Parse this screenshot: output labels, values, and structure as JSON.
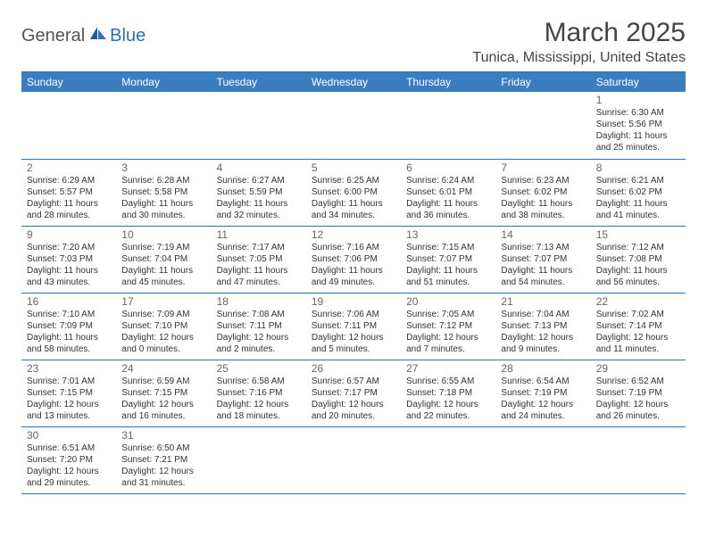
{
  "logo": {
    "text_a": "General",
    "text_b": "Blue",
    "icon_color": "#2f6fb3"
  },
  "title": "March 2025",
  "location": "Tunica, Mississippi, United States",
  "header_bg": "#3a7ec1",
  "border_color": "#2f6fb3",
  "days_of_week": [
    "Sunday",
    "Monday",
    "Tuesday",
    "Wednesday",
    "Thursday",
    "Friday",
    "Saturday"
  ],
  "weeks": [
    [
      null,
      null,
      null,
      null,
      null,
      null,
      {
        "d": "1",
        "sr": "6:30 AM",
        "ss": "5:56 PM",
        "dl": "11 hours and 25 minutes."
      }
    ],
    [
      {
        "d": "2",
        "sr": "6:29 AM",
        "ss": "5:57 PM",
        "dl": "11 hours and 28 minutes."
      },
      {
        "d": "3",
        "sr": "6:28 AM",
        "ss": "5:58 PM",
        "dl": "11 hours and 30 minutes."
      },
      {
        "d": "4",
        "sr": "6:27 AM",
        "ss": "5:59 PM",
        "dl": "11 hours and 32 minutes."
      },
      {
        "d": "5",
        "sr": "6:25 AM",
        "ss": "6:00 PM",
        "dl": "11 hours and 34 minutes."
      },
      {
        "d": "6",
        "sr": "6:24 AM",
        "ss": "6:01 PM",
        "dl": "11 hours and 36 minutes."
      },
      {
        "d": "7",
        "sr": "6:23 AM",
        "ss": "6:02 PM",
        "dl": "11 hours and 38 minutes."
      },
      {
        "d": "8",
        "sr": "6:21 AM",
        "ss": "6:02 PM",
        "dl": "11 hours and 41 minutes."
      }
    ],
    [
      {
        "d": "9",
        "sr": "7:20 AM",
        "ss": "7:03 PM",
        "dl": "11 hours and 43 minutes."
      },
      {
        "d": "10",
        "sr": "7:19 AM",
        "ss": "7:04 PM",
        "dl": "11 hours and 45 minutes."
      },
      {
        "d": "11",
        "sr": "7:17 AM",
        "ss": "7:05 PM",
        "dl": "11 hours and 47 minutes."
      },
      {
        "d": "12",
        "sr": "7:16 AM",
        "ss": "7:06 PM",
        "dl": "11 hours and 49 minutes."
      },
      {
        "d": "13",
        "sr": "7:15 AM",
        "ss": "7:07 PM",
        "dl": "11 hours and 51 minutes."
      },
      {
        "d": "14",
        "sr": "7:13 AM",
        "ss": "7:07 PM",
        "dl": "11 hours and 54 minutes."
      },
      {
        "d": "15",
        "sr": "7:12 AM",
        "ss": "7:08 PM",
        "dl": "11 hours and 56 minutes."
      }
    ],
    [
      {
        "d": "16",
        "sr": "7:10 AM",
        "ss": "7:09 PM",
        "dl": "11 hours and 58 minutes."
      },
      {
        "d": "17",
        "sr": "7:09 AM",
        "ss": "7:10 PM",
        "dl": "12 hours and 0 minutes."
      },
      {
        "d": "18",
        "sr": "7:08 AM",
        "ss": "7:11 PM",
        "dl": "12 hours and 2 minutes."
      },
      {
        "d": "19",
        "sr": "7:06 AM",
        "ss": "7:11 PM",
        "dl": "12 hours and 5 minutes."
      },
      {
        "d": "20",
        "sr": "7:05 AM",
        "ss": "7:12 PM",
        "dl": "12 hours and 7 minutes."
      },
      {
        "d": "21",
        "sr": "7:04 AM",
        "ss": "7:13 PM",
        "dl": "12 hours and 9 minutes."
      },
      {
        "d": "22",
        "sr": "7:02 AM",
        "ss": "7:14 PM",
        "dl": "12 hours and 11 minutes."
      }
    ],
    [
      {
        "d": "23",
        "sr": "7:01 AM",
        "ss": "7:15 PM",
        "dl": "12 hours and 13 minutes."
      },
      {
        "d": "24",
        "sr": "6:59 AM",
        "ss": "7:15 PM",
        "dl": "12 hours and 16 minutes."
      },
      {
        "d": "25",
        "sr": "6:58 AM",
        "ss": "7:16 PM",
        "dl": "12 hours and 18 minutes."
      },
      {
        "d": "26",
        "sr": "6:57 AM",
        "ss": "7:17 PM",
        "dl": "12 hours and 20 minutes."
      },
      {
        "d": "27",
        "sr": "6:55 AM",
        "ss": "7:18 PM",
        "dl": "12 hours and 22 minutes."
      },
      {
        "d": "28",
        "sr": "6:54 AM",
        "ss": "7:19 PM",
        "dl": "12 hours and 24 minutes."
      },
      {
        "d": "29",
        "sr": "6:52 AM",
        "ss": "7:19 PM",
        "dl": "12 hours and 26 minutes."
      }
    ],
    [
      {
        "d": "30",
        "sr": "6:51 AM",
        "ss": "7:20 PM",
        "dl": "12 hours and 29 minutes."
      },
      {
        "d": "31",
        "sr": "6:50 AM",
        "ss": "7:21 PM",
        "dl": "12 hours and 31 minutes."
      },
      null,
      null,
      null,
      null,
      null
    ]
  ],
  "labels": {
    "sunrise": "Sunrise:",
    "sunset": "Sunset:",
    "daylight": "Daylight:"
  }
}
